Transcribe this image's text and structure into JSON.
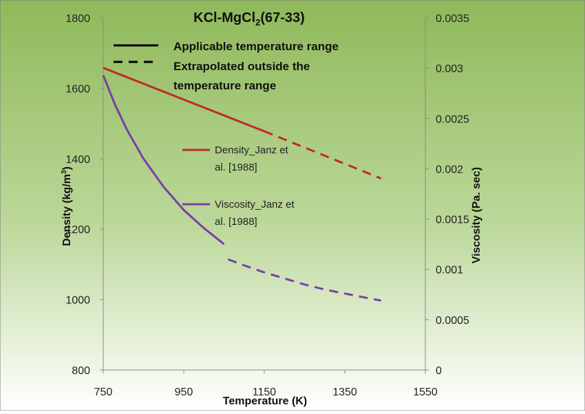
{
  "chart_data": {
    "type": "line",
    "title": "KCl-MgCl",
    "title_subscript": "2",
    "title_suffix": "(67-33)",
    "xlabel": "Temperature (K)",
    "ylabel_left": "Density (kg/m",
    "ylabel_left_sup": "3",
    "ylabel_left_end": ")",
    "ylabel_right": "Viscosity (Pa. sec)",
    "xlim": [
      750,
      1550
    ],
    "ylim_left": [
      800,
      1800
    ],
    "ylim_right": [
      0,
      0.0035
    ],
    "x_ticks": [
      "750",
      "950",
      "1150",
      "1350",
      "1550"
    ],
    "y_left_ticks": [
      "800",
      "1000",
      "1200",
      "1400",
      "1600",
      "1800"
    ],
    "y_right_ticks": [
      "0",
      "0.0005",
      "0.001",
      "0.0015",
      "0.002",
      "0.0025",
      "0.003",
      "0.0035"
    ],
    "grid": false,
    "background_gradient": [
      "#8fb95a",
      "#ffffff"
    ],
    "legend_style": {
      "solid_label": "Applicable temperature range",
      "dashed_label_line1": "Extrapolated outside the",
      "dashed_label_line2": "temperature range"
    },
    "series": [
      {
        "name_line1": "Density_Janz et",
        "name_line2": "al. [1988]",
        "axis": "left",
        "color": "#c0282a",
        "solid": {
          "x": [
            750,
            1150
          ],
          "y": [
            1658,
            1478
          ]
        },
        "dashed": {
          "x": [
            1150,
            1440
          ],
          "y": [
            1478,
            1344
          ]
        }
      },
      {
        "name_line1": "Viscosity_Janz et",
        "name_line2": "al. [1988]",
        "axis": "right",
        "color": "#7a3fa8",
        "solid": {
          "x": [
            750,
            780,
            810,
            850,
            900,
            950,
            1000,
            1050
          ],
          "y": [
            0.00293,
            0.00263,
            0.00238,
            0.0021,
            0.00182,
            0.00159,
            0.00141,
            0.00125
          ]
        },
        "dashed": {
          "x": [
            1060,
            1100,
            1150,
            1200,
            1250,
            1300,
            1350,
            1400,
            1440
          ],
          "y": [
            0.0011,
            0.00104,
            0.00097,
            0.00091,
            0.00085,
            0.0008,
            0.00076,
            0.00072,
            0.00069
          ]
        }
      }
    ]
  }
}
